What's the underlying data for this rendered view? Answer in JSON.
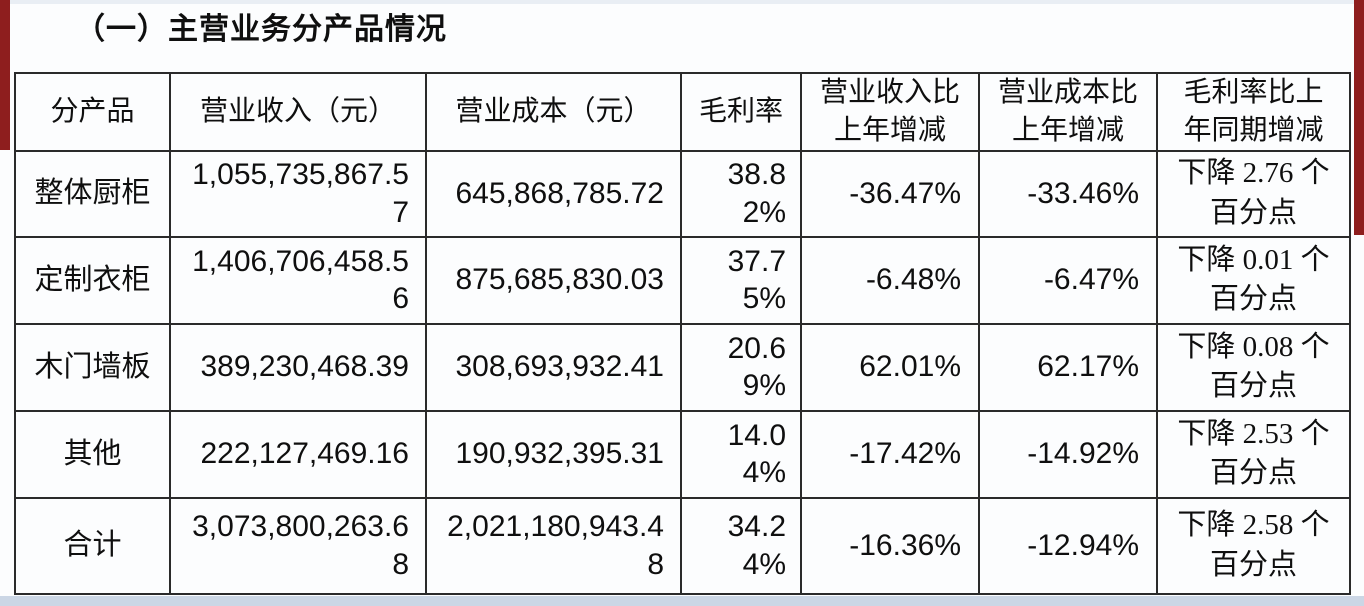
{
  "page": {
    "title": "（一）主营业务分产品情况"
  },
  "colors": {
    "accent_red": "#8e1e1e",
    "bottom_strip": "#cbd6e5",
    "table_border": "#2a2a2a",
    "background": "#fcfdfe",
    "text": "#0f0f0f"
  },
  "table": {
    "columns": [
      {
        "key": "product",
        "label": "分产品"
      },
      {
        "key": "revenue",
        "label": "营业收入（元）"
      },
      {
        "key": "cost",
        "label": "营业成本（元）"
      },
      {
        "key": "margin",
        "label": "毛利率"
      },
      {
        "key": "revenue_yoy",
        "label": "营业收入比\n上年增减"
      },
      {
        "key": "cost_yoy",
        "label": "营业成本比\n上年增减"
      },
      {
        "key": "margin_yoy",
        "label": "毛利率比上\n年同期增减"
      }
    ],
    "rows": [
      {
        "product": "整体厨柜",
        "revenue": "1,055,735,867.57",
        "cost": "645,868,785.72",
        "margin": "38.82%",
        "revenue_yoy": "-36.47%",
        "cost_yoy": "-33.46%",
        "margin_yoy": "下降 2.76 个百分点"
      },
      {
        "product": "定制衣柜",
        "revenue": "1,406,706,458.56",
        "cost": "875,685,830.03",
        "margin": "37.75%",
        "revenue_yoy": "-6.48%",
        "cost_yoy": "-6.47%",
        "margin_yoy": "下降 0.01 个百分点"
      },
      {
        "product": "木门墙板",
        "revenue": "389,230,468.39",
        "cost": "308,693,932.41",
        "margin": "20.69%",
        "revenue_yoy": "62.01%",
        "cost_yoy": "62.17%",
        "margin_yoy": "下降 0.08 个百分点"
      },
      {
        "product": "其他",
        "revenue": "222,127,469.16",
        "cost": "190,932,395.31",
        "margin": "14.04%",
        "revenue_yoy": "-17.42%",
        "cost_yoy": "-14.92%",
        "margin_yoy": "下降 2.53 个百分点"
      },
      {
        "product": "合计",
        "revenue": "3,073,800,263.68",
        "cost": "2,021,180,943.48",
        "margin": "34.24%",
        "revenue_yoy": "-16.36%",
        "cost_yoy": "-12.94%",
        "margin_yoy": "下降 2.58 个百分点"
      }
    ]
  }
}
